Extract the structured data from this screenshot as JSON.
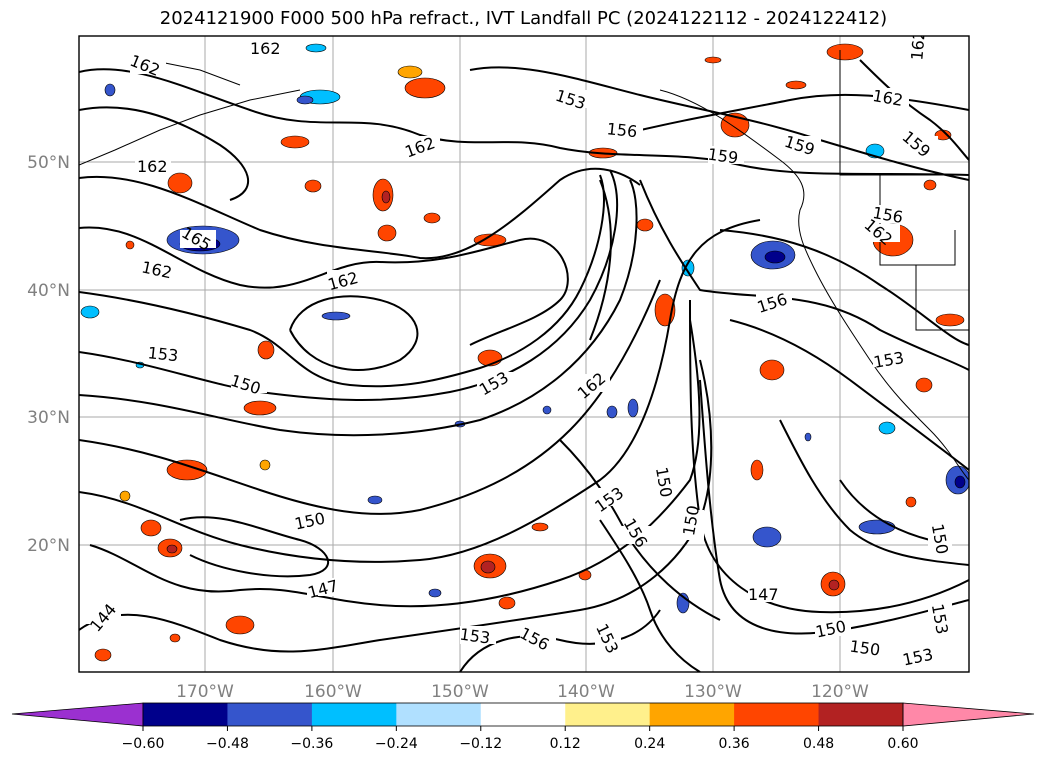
{
  "title": "2024121900 F000 500 hPa refract., IVT Landfall PC (2024122112 - 2024122412)",
  "longitude_ticks": [
    "170°W",
    "160°W",
    "150°W",
    "140°W",
    "130°W",
    "120°W"
  ],
  "latitude_ticks": [
    "50°N",
    "40°N",
    "30°N",
    "20°N"
  ],
  "contour_labels": [
    "162",
    "162",
    "162",
    "162",
    "162",
    "162",
    "162",
    "165",
    "153",
    "156",
    "159",
    "159",
    "162",
    "159",
    "156",
    "156",
    "153",
    "150",
    "153",
    "162",
    "153",
    "150",
    "150",
    "147",
    "144",
    "153",
    "156",
    "153",
    "150",
    "150",
    "153",
    "156",
    "153",
    "150",
    "150",
    "153",
    "147",
    "162"
  ],
  "colorbar": {
    "ticks": [
      "−0.60",
      "−0.48",
      "−0.36",
      "−0.24",
      "−0.12",
      "0.12",
      "0.24",
      "0.36",
      "0.48",
      "0.60"
    ],
    "under_color": "#9b30d0",
    "over_color": "#ff88a8",
    "colors": [
      "#00008b",
      "#3555cc",
      "#00bfff",
      "#b0e0ff",
      "#ffffff",
      "#fff08c",
      "#ffa500",
      "#ff4500",
      "#b22222"
    ]
  }
}
